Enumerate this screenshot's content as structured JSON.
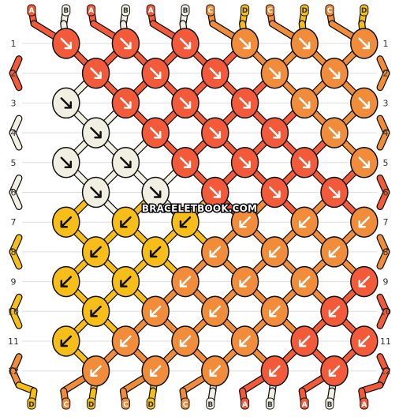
{
  "watermark": "BRACELETBOOK.COM",
  "colors": {
    "A": "#F25A3A",
    "B": "#F1EEE2",
    "C": "#F08C3A",
    "D": "#F7BE1A",
    "outline": "#111111"
  },
  "strands_top": [
    "A",
    "B",
    "A",
    "B",
    "A",
    "B",
    "C",
    "D",
    "C",
    "D",
    "C",
    "D"
  ],
  "strands_bottom": [
    "D",
    "C",
    "D",
    "C",
    "D",
    "C",
    "B",
    "A",
    "B",
    "A",
    "B",
    "A"
  ],
  "row_labels": [
    "1",
    "2",
    "3",
    "4",
    "5",
    "6",
    "7",
    "8",
    "9",
    "10",
    "11",
    "12"
  ],
  "knots": [
    [
      "A",
      "A",
      "A",
      "C",
      "C",
      "C"
    ],
    [
      "A",
      "A",
      "A",
      "C",
      "C"
    ],
    [
      "B",
      "A",
      "A",
      "A",
      "C",
      "C"
    ],
    [
      "B",
      "A",
      "A",
      "A",
      "C"
    ],
    [
      "B",
      "B",
      "A",
      "A",
      "A",
      "C"
    ],
    [
      "B",
      "B",
      "A",
      "A",
      "A"
    ],
    [
      "D",
      "D",
      "D",
      "C",
      "C",
      "C"
    ],
    [
      "D",
      "D",
      "C",
      "C",
      "C"
    ],
    [
      "D",
      "D",
      "C",
      "C",
      "C",
      "A"
    ],
    [
      "D",
      "C",
      "C",
      "C",
      "A"
    ],
    [
      "D",
      "C",
      "C",
      "C",
      "A",
      "A"
    ],
    [
      "C",
      "C",
      "C",
      "A",
      "A"
    ]
  ],
  "directions": [
    [
      "fwd",
      "fwd",
      "fwd",
      "fwd",
      "fwd",
      "fwd"
    ],
    [
      "fwd",
      "fwd",
      "fwd",
      "fwd",
      "fwd"
    ],
    [
      "fwd",
      "fwd",
      "fwd",
      "fwd",
      "fwd",
      "fwd"
    ],
    [
      "fwd",
      "fwd",
      "fwd",
      "fwd",
      "fwd"
    ],
    [
      "fwd",
      "fwd",
      "fwd",
      "fwd",
      "fwd",
      "fwd"
    ],
    [
      "fwd",
      "fwd",
      "fwd",
      "fwd",
      "fwd"
    ],
    [
      "bwd",
      "bwd",
      "bwd",
      "bwd",
      "bwd",
      "bwd"
    ],
    [
      "bwd",
      "bwd",
      "bwd",
      "bwd",
      "bwd"
    ],
    [
      "bwd",
      "bwd",
      "bwd",
      "bwd",
      "bwd",
      "bwd"
    ],
    [
      "bwd",
      "bwd",
      "bwd",
      "bwd",
      "bwd"
    ],
    [
      "bwd",
      "bwd",
      "bwd",
      "bwd",
      "bwd",
      "bwd"
    ],
    [
      "bwd",
      "bwd",
      "bwd",
      "bwd",
      "bwd"
    ]
  ]
}
